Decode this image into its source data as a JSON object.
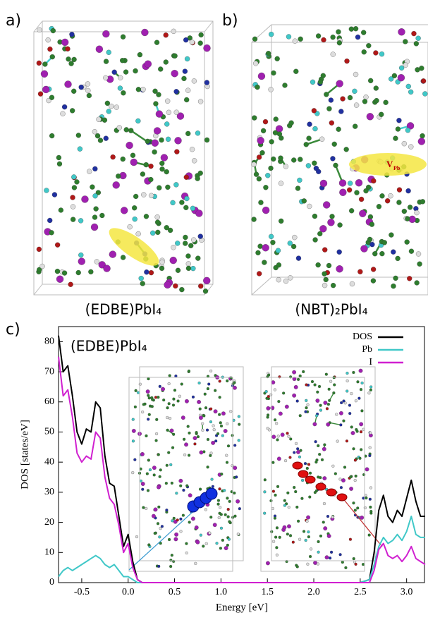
{
  "panels": {
    "a": {
      "label": "a)",
      "caption": "(EDBE)PbI₄"
    },
    "b": {
      "label": "b)",
      "caption": "(NBT)₂PbI₄",
      "annotation": "V",
      "annotation_sub": "Pb"
    },
    "c": {
      "label": "c)"
    }
  },
  "chart_data": {
    "type": "line",
    "annotation": "(EDBE)PbI₄",
    "x_label": "Energy [eV]",
    "y_label": "DOS [states/eV]",
    "x": [
      -0.75,
      -0.7,
      -0.65,
      -0.6,
      -0.55,
      -0.5,
      -0.45,
      -0.4,
      -0.35,
      -0.3,
      -0.25,
      -0.2,
      -0.15,
      -0.1,
      -0.05,
      0,
      0.05,
      0.1,
      0.15,
      0.5,
      1,
      1.5,
      2,
      2.5,
      2.6,
      2.65,
      2.7,
      2.75,
      2.8,
      2.85,
      2.9,
      2.95,
      3,
      3.05,
      3.1,
      3.15,
      3.2
    ],
    "series": [
      {
        "name": "DOS",
        "color": "#000000",
        "values": [
          82,
          70,
          72,
          62,
          50,
          46,
          51,
          50,
          60,
          58,
          42,
          33,
          32,
          22,
          12,
          16,
          7,
          1,
          0,
          0,
          0,
          0,
          0,
          0,
          1,
          10,
          24,
          29,
          22,
          20,
          24,
          22,
          28,
          34,
          27,
          22,
          22
        ]
      },
      {
        "name": "Pb",
        "color": "#40c8c8",
        "values": [
          2,
          4,
          5,
          4,
          5,
          6,
          7,
          8,
          9,
          8,
          6,
          5,
          6,
          4,
          2,
          2,
          1,
          0,
          0,
          0,
          0,
          0,
          0,
          0,
          1,
          6,
          12,
          15,
          13,
          14,
          16,
          14,
          17,
          22,
          16,
          15,
          15
        ]
      },
      {
        "name": "I",
        "color": "#d020d0",
        "values": [
          75,
          62,
          64,
          55,
          43,
          40,
          42,
          41,
          50,
          48,
          35,
          28,
          26,
          19,
          10,
          13,
          5,
          1,
          0,
          0,
          0,
          0,
          0,
          0,
          0,
          4,
          11,
          13,
          9,
          8,
          9,
          7,
          9,
          12,
          8,
          7,
          6
        ]
      }
    ],
    "xlim": [
      -0.75,
      3.2
    ],
    "ylim": [
      0,
      85
    ],
    "xticks": [
      -0.5,
      {
        "value": 0,
        "label": "0.0"
      },
      0.5,
      {
        "value": 1,
        "label": "1.0"
      },
      1.5,
      {
        "value": 2,
        "label": "2.0"
      },
      2.5,
      {
        "value": 3,
        "label": "3.0"
      }
    ],
    "yticks": [
      0,
      10,
      20,
      30,
      40,
      50,
      60,
      70,
      80
    ],
    "legend": "top-right"
  }
}
